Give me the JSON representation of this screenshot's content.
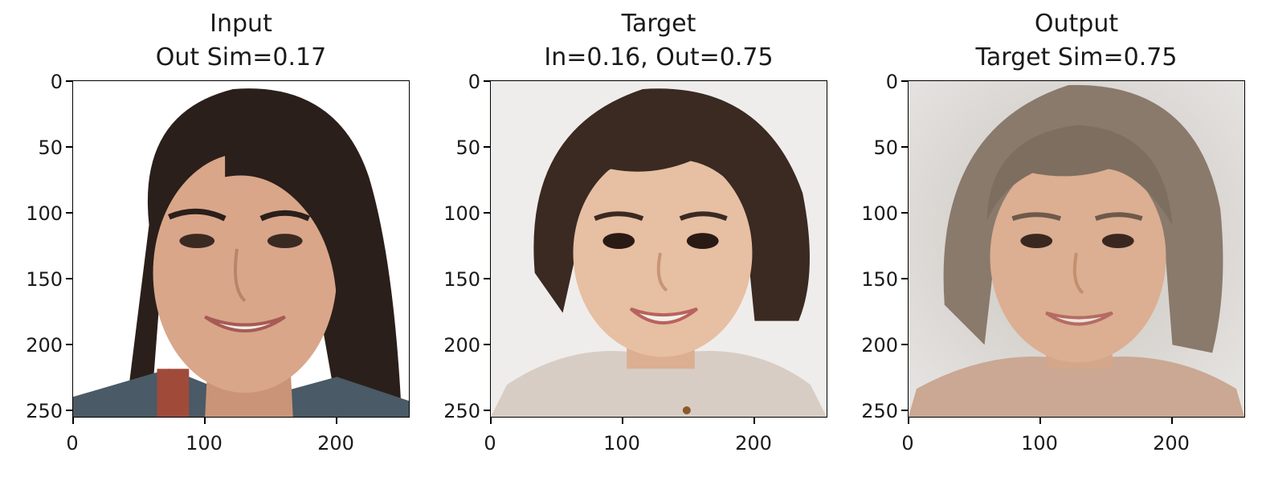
{
  "panels": [
    {
      "title_line1": "Input",
      "title_line2": "Out Sim=0.17",
      "y_ticks": [
        "0",
        "50",
        "100",
        "150",
        "200",
        "250"
      ],
      "x_ticks": [
        "0",
        "100",
        "200"
      ],
      "image": {
        "subject": "adult-woman-face",
        "hair": "#2a1f1a",
        "skin": "#d9a68a",
        "bg": "#ffffff",
        "shirt": "#4a5a66"
      }
    },
    {
      "title_line1": "Target",
      "title_line2": "In=0.16, Out=0.75",
      "y_ticks": [
        "0",
        "50",
        "100",
        "150",
        "200",
        "250"
      ],
      "x_ticks": [
        "0",
        "100",
        "200"
      ],
      "image": {
        "subject": "child-face",
        "hair": "#3a2a22",
        "skin": "#e7bfa3",
        "bg": "#efedeb",
        "shirt": "#d8cdc4"
      }
    },
    {
      "title_line1": "Output",
      "title_line2": "Target Sim=0.75",
      "y_ticks": [
        "0",
        "50",
        "100",
        "150",
        "200",
        "250"
      ],
      "x_ticks": [
        "0",
        "100",
        "200"
      ],
      "image": {
        "subject": "blended-child-face",
        "hair": "#8a7a6c",
        "skin": "#dcae92",
        "bg": "#dcdad8",
        "shirt": "#caa893"
      }
    }
  ],
  "axis_range": {
    "x": [
      0,
      256
    ],
    "y": [
      0,
      256
    ]
  }
}
